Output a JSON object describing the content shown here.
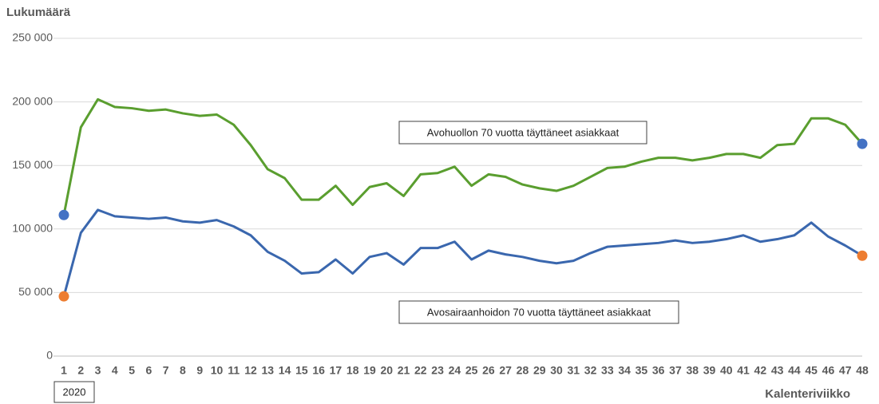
{
  "chart_data": {
    "type": "line",
    "ylabel": "Lukumäärä",
    "xlabel": "Kalenteriviikko",
    "annotation": "2020",
    "categories": [
      "1",
      "2",
      "3",
      "4",
      "5",
      "6",
      "7",
      "8",
      "9",
      "10",
      "11",
      "12",
      "13",
      "14",
      "15",
      "16",
      "17",
      "18",
      "19",
      "20",
      "21",
      "22",
      "23",
      "24",
      "25",
      "26",
      "27",
      "28",
      "29",
      "30",
      "31",
      "32",
      "33",
      "34",
      "35",
      "36",
      "37",
      "38",
      "39",
      "40",
      "41",
      "42",
      "43",
      "44",
      "45",
      "46",
      "47",
      "48"
    ],
    "ylim": [
      0,
      250000
    ],
    "yticks": [
      0,
      {
        "value": 50000,
        "label": "50 000"
      },
      {
        "value": 100000,
        "label": "100 000"
      },
      {
        "value": 150000,
        "label": "150 000"
      },
      {
        "value": 200000,
        "label": "200 000"
      },
      {
        "value": 250000,
        "label": "250 000"
      }
    ],
    "grid": true,
    "series": [
      {
        "name": "Avohuollon 70 vuotta täyttäneet asiakkaat",
        "color": "#5a9e2f",
        "endpoint_color": "#4472c4",
        "values": [
          111000,
          180000,
          202000,
          196000,
          195000,
          193000,
          194000,
          191000,
          189000,
          190000,
          182000,
          166000,
          147000,
          140000,
          123000,
          123000,
          134000,
          119000,
          133000,
          136000,
          126000,
          143000,
          144000,
          149000,
          134000,
          143000,
          141000,
          135000,
          132000,
          130000,
          134000,
          141000,
          148000,
          149000,
          153000,
          156000,
          156000,
          154000,
          156000,
          159000,
          159000,
          156000,
          166000,
          167000,
          187000,
          187000,
          182000,
          167000
        ]
      },
      {
        "name": "Avosairaanhoidon 70 vuotta täyttäneet asiakkaat",
        "color": "#3a67ae",
        "endpoint_color": "#ed7d31",
        "values": [
          47000,
          97000,
          115000,
          110000,
          109000,
          108000,
          109000,
          106000,
          105000,
          107000,
          102000,
          95000,
          82000,
          75000,
          65000,
          66000,
          76000,
          65000,
          78000,
          81000,
          72000,
          85000,
          85000,
          90000,
          76000,
          83000,
          80000,
          78000,
          75000,
          73000,
          75000,
          81000,
          86000,
          87000,
          88000,
          89000,
          91000,
          89000,
          90000,
          92000,
          95000,
          90000,
          92000,
          95000,
          105000,
          94000,
          87000,
          79000
        ]
      }
    ]
  }
}
